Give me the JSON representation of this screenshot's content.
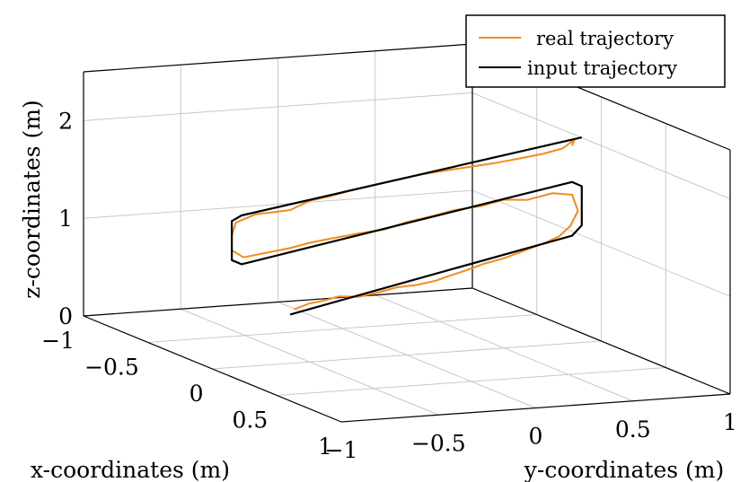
{
  "chart_data": {
    "type": "line",
    "projection": "3d",
    "xlabel": "x-coordinates (m)",
    "ylabel": "y-coordinates (m)",
    "zlabel": "z-coordinates (m)",
    "x_ticks": [
      "−1",
      "−0.5",
      "0",
      "0.5",
      "1"
    ],
    "y_ticks": [
      "−1",
      "−0.5",
      "0",
      "0.5",
      "1"
    ],
    "z_ticks": [
      "0",
      "1",
      "2"
    ],
    "xlim": [
      -1,
      1
    ],
    "ylim": [
      -1,
      1
    ],
    "zlim": [
      0,
      2.5
    ],
    "grid": true,
    "legend_position": "top-right",
    "series": [
      {
        "name": "real trajectory",
        "color": "#f28c1e",
        "points": [
          [
            0.0,
            -0.58,
            0.55
          ],
          [
            0.0,
            -0.5,
            0.6
          ],
          [
            0.0,
            -0.42,
            0.62
          ],
          [
            0.0,
            -0.35,
            0.65
          ],
          [
            0.0,
            -0.25,
            0.63
          ],
          [
            0.0,
            -0.15,
            0.66
          ],
          [
            0.0,
            -0.05,
            0.7
          ],
          [
            0.0,
            0.05,
            0.71
          ],
          [
            0.0,
            0.15,
            0.74
          ],
          [
            0.0,
            0.22,
            0.78
          ],
          [
            0.0,
            0.3,
            0.82
          ],
          [
            0.0,
            0.4,
            0.88
          ],
          [
            0.0,
            0.5,
            0.92
          ],
          [
            0.0,
            0.6,
            0.98
          ],
          [
            0.0,
            0.7,
            1.04
          ],
          [
            0.0,
            0.78,
            1.1
          ],
          [
            0.0,
            0.84,
            1.2
          ],
          [
            0.0,
            0.88,
            1.35
          ],
          [
            0.0,
            0.85,
            1.52
          ],
          [
            0.0,
            0.75,
            1.55
          ],
          [
            0.0,
            0.62,
            1.5
          ],
          [
            0.0,
            0.5,
            1.52
          ],
          [
            0.0,
            0.38,
            1.47
          ],
          [
            0.0,
            0.25,
            1.45
          ],
          [
            0.0,
            0.12,
            1.4
          ],
          [
            0.0,
            0.0,
            1.36
          ],
          [
            0.0,
            -0.12,
            1.3
          ],
          [
            0.0,
            -0.25,
            1.28
          ],
          [
            0.0,
            -0.38,
            1.25
          ],
          [
            0.0,
            -0.5,
            1.22
          ],
          [
            0.0,
            -0.6,
            1.18
          ],
          [
            0.0,
            -0.72,
            1.15
          ],
          [
            0.0,
            -0.84,
            1.12
          ],
          [
            0.0,
            -0.9,
            1.2
          ],
          [
            0.0,
            -0.9,
            1.35
          ],
          [
            0.0,
            -0.88,
            1.48
          ],
          [
            0.0,
            -0.78,
            1.55
          ],
          [
            0.0,
            -0.68,
            1.56
          ],
          [
            0.0,
            -0.6,
            1.57
          ],
          [
            0.0,
            -0.5,
            1.65
          ],
          [
            0.0,
            -0.4,
            1.68
          ],
          [
            0.0,
            -0.3,
            1.72
          ],
          [
            0.0,
            -0.18,
            1.76
          ],
          [
            0.0,
            -0.05,
            1.8
          ],
          [
            0.0,
            0.08,
            1.84
          ],
          [
            0.0,
            0.2,
            1.86
          ],
          [
            0.0,
            0.32,
            1.88
          ],
          [
            0.0,
            0.45,
            1.9
          ],
          [
            0.0,
            0.58,
            1.93
          ],
          [
            0.0,
            0.7,
            1.96
          ],
          [
            0.0,
            0.8,
            2.0
          ],
          [
            0.0,
            0.86,
            2.08
          ],
          [
            0.0,
            0.85,
            2.02
          ]
        ]
      },
      {
        "name": "input trajectory",
        "color": "#000000",
        "points": [
          [
            0.0,
            -0.6,
            0.5
          ],
          [
            0.0,
            0.0,
            0.75
          ],
          [
            0.0,
            0.85,
            1.1
          ],
          [
            0.0,
            0.9,
            1.2
          ],
          [
            0.0,
            0.9,
            1.6
          ],
          [
            0.0,
            0.85,
            1.65
          ],
          [
            0.0,
            -0.85,
            1.05
          ],
          [
            0.0,
            -0.9,
            1.1
          ],
          [
            0.0,
            -0.9,
            1.5
          ],
          [
            0.0,
            -0.85,
            1.55
          ],
          [
            0.0,
            0.9,
            2.1
          ]
        ]
      }
    ]
  }
}
